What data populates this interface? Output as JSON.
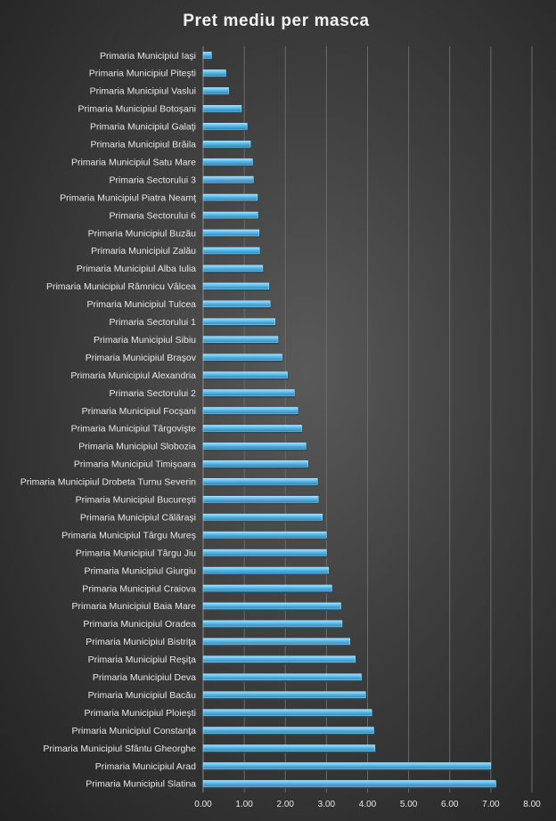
{
  "chart_data": {
    "type": "bar",
    "orientation": "horizontal",
    "title": "Pret mediu per masca",
    "xlim": [
      0,
      8
    ],
    "xticks": [
      "0.00",
      "1.00",
      "2.00",
      "3.00",
      "4.00",
      "5.00",
      "6.00",
      "7.00",
      "8.00"
    ],
    "grid": true,
    "bar_color": "#5bb8e6",
    "categories": [
      "Primaria Municipiul Iaşi",
      "Primaria Municipiul Piteşti",
      "Primaria Municipiul Vaslui",
      "Primaria Municipiul Botoşani",
      "Primaria Municipiul Galaţi",
      "Primaria Municipiul Brăila",
      "Primaria Municipiul Satu Mare",
      "Primaria Sectorului 3",
      "Primaria Municipiul Piatra Neamţ",
      "Primaria Sectorului 6",
      "Primaria Municipiul Buzău",
      "Primaria Municipiul Zalău",
      "Primaria Municipiul Alba Iulia",
      "Primaria Municipiul Râmnicu Vâlcea",
      "Primaria Municipiul Tulcea",
      "Primaria Sectorului 1",
      "Primaria Municipiul Sibiu",
      "Primaria Municipiul Braşov",
      "Primaria Municipiul Alexandria",
      "Primaria Sectorului 2",
      "Primaria Municipiul Focşani",
      "Primaria Municipiul Târgovişte",
      "Primaria Municipiul Slobozia",
      "Primaria Municipiul Timişoara",
      "Primaria Municipiul Drobeta Turnu Severin",
      "Primaria Municipiul Bucureşti",
      "Primaria Municipiul Călăraşi",
      "Primaria Municipiul Târgu Mureş",
      "Primaria Municipiul Târgu Jiu",
      "Primaria Municipiul Giurgiu",
      "Primaria Municipiul Craiova",
      "Primaria Municipiul Baia Mare",
      "Primaria Municipiul Oradea",
      "Primaria Municipiul Bistriţa",
      "Primaria Municipiul Reşiţa",
      "Primaria Municipiul Deva",
      "Primaria Municipiul Bacău",
      "Primaria Municipiul Ploieşti",
      "Primaria Municipiul Constanţa",
      "Primaria Municipiul Sfântu Gheorghe",
      "Primaria Municipiul Arad",
      "Primaria Municipiul Slatina"
    ],
    "values": [
      0.2,
      0.55,
      0.62,
      0.93,
      1.07,
      1.15,
      1.2,
      1.22,
      1.32,
      1.33,
      1.36,
      1.37,
      1.45,
      1.6,
      1.63,
      1.75,
      1.82,
      1.92,
      2.05,
      2.22,
      2.3,
      2.4,
      2.5,
      2.55,
      2.78,
      2.8,
      2.9,
      3.0,
      3.0,
      3.05,
      3.13,
      3.35,
      3.38,
      3.57,
      3.7,
      3.85,
      3.95,
      4.1,
      4.15,
      4.18,
      7.0,
      7.12
    ]
  }
}
